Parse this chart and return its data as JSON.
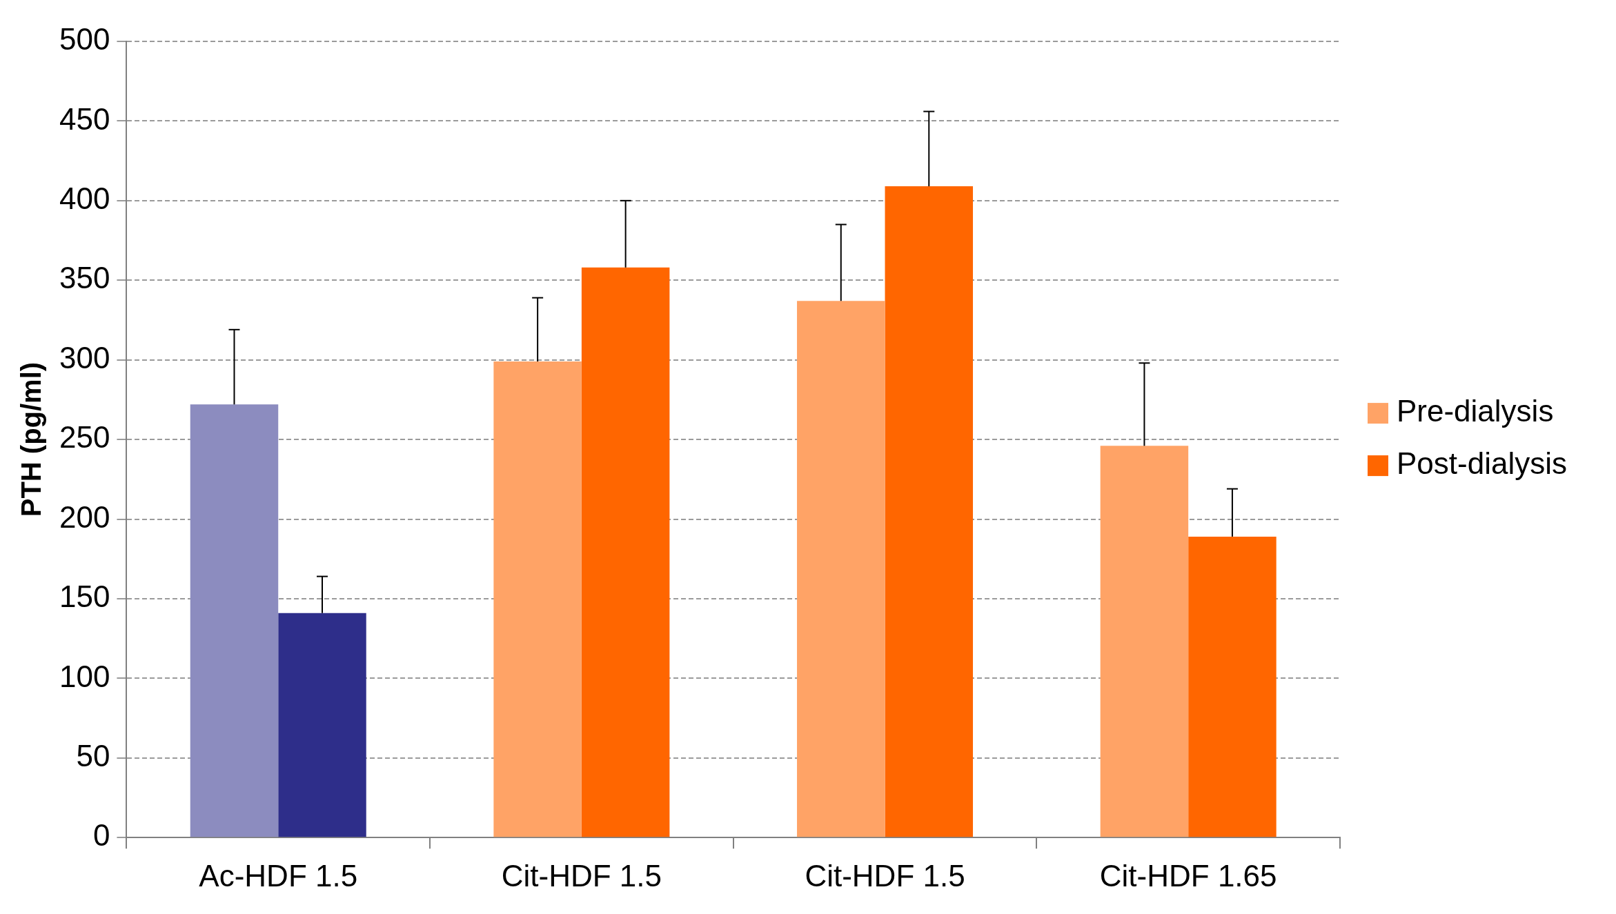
{
  "chart_data": {
    "type": "bar",
    "ylabel": "PTH (pg/ml)",
    "categories": [
      "Ac-HDF 1.5",
      "Cit-HDF 1.5",
      "Cit-HDF 1.5",
      "Cit-HDF 1.65"
    ],
    "series": [
      {
        "name": "Pre-dialysis",
        "color": "#ffa366",
        "colors": [
          "#8c8cbf",
          "#ffa366",
          "#ffa366",
          "#ffa366"
        ],
        "values": [
          272,
          299,
          337,
          246
        ],
        "errors": [
          [
            272,
            319
          ],
          [
            299,
            339
          ],
          [
            337,
            385
          ],
          [
            246,
            298
          ]
        ]
      },
      {
        "name": "Post-dialysis",
        "color": "#ff6600",
        "colors": [
          "#2e2e8a",
          "#ff6600",
          "#ff6600",
          "#ff6600"
        ],
        "values": [
          141,
          358,
          409,
          189
        ],
        "errors": [
          [
            141,
            164
          ],
          [
            358,
            400
          ],
          [
            409,
            456
          ],
          [
            189,
            219
          ]
        ]
      }
    ],
    "ylim": [
      0,
      500
    ],
    "yticks": [
      0,
      50,
      100,
      150,
      200,
      250,
      300,
      350,
      400,
      450,
      500
    ],
    "grid": "y",
    "legend": "right"
  }
}
